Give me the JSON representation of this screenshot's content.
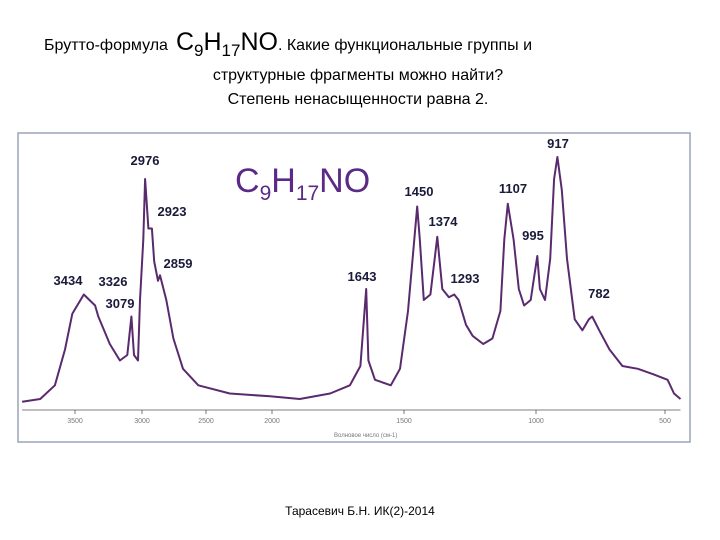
{
  "slide": {
    "line1_prefix": "Брутто-формула",
    "formula": [
      "C",
      "9",
      "H",
      "17",
      "NO"
    ],
    "line1_suffix": ". Какие функциональные группы и",
    "line2": "структурные фрагменты можно найти?",
    "line3": "Степень ненасыщенности равна 2.",
    "footer": "Тарасевич Б.Н. ИК(2)-2014"
  },
  "chart_data": {
    "type": "line",
    "x_label": "Волновое число (см-1)",
    "color": "#5a2a6e",
    "xlim": [
      3895,
      440
    ],
    "ylim": [
      0,
      100
    ],
    "xticks": [
      3500,
      3000,
      2500,
      2000,
      1500,
      1000,
      500
    ],
    "x": [
      3895,
      3760,
      3650,
      3575,
      3520,
      3434,
      3350,
      3326,
      3240,
      3165,
      3110,
      3079,
      3060,
      3030,
      3015,
      2990,
      2976,
      2950,
      2923,
      2905,
      2875,
      2859,
      2810,
      2755,
      2680,
      2560,
      2320,
      2015,
      1895,
      1780,
      1705,
      1665,
      1643,
      1635,
      1610,
      1550,
      1515,
      1485,
      1450,
      1440,
      1425,
      1400,
      1374,
      1355,
      1330,
      1310,
      1293,
      1265,
      1240,
      1200,
      1165,
      1135,
      1120,
      1107,
      1085,
      1065,
      1045,
      1020,
      995,
      985,
      965,
      945,
      930,
      917,
      900,
      880,
      850,
      820,
      795,
      782,
      755,
      715,
      665,
      605,
      545,
      490,
      465,
      440
    ],
    "values": [
      3,
      4,
      9,
      22,
      35,
      42,
      38,
      34,
      24,
      18,
      20,
      34,
      20,
      18,
      40,
      62,
      84,
      66,
      66,
      54,
      47,
      49,
      40,
      26,
      15,
      9,
      6,
      5,
      4,
      6,
      9,
      16,
      44,
      18,
      11,
      9,
      15,
      36,
      74,
      62,
      40,
      42,
      63,
      44,
      41,
      42,
      40,
      31,
      27,
      24,
      26,
      36,
      62,
      75,
      62,
      44,
      38,
      40,
      56,
      44,
      40,
      55,
      84,
      92,
      80,
      55,
      33,
      29,
      33,
      34,
      29,
      22,
      16,
      15,
      13,
      11,
      6,
      4
    ],
    "annotations": [
      {
        "x": 3434,
        "label": "3434"
      },
      {
        "x": 3326,
        "label": "3326"
      },
      {
        "x": 3079,
        "label": "3079"
      },
      {
        "x": 2976,
        "label": "2976"
      },
      {
        "x": 2923,
        "label": "2923"
      },
      {
        "x": 2859,
        "label": "2859"
      },
      {
        "x": 1643,
        "label": "1643"
      },
      {
        "x": 1450,
        "label": "1450"
      },
      {
        "x": 1374,
        "label": "1374"
      },
      {
        "x": 1293,
        "label": "1293"
      },
      {
        "x": 1107,
        "label": "1107"
      },
      {
        "x": 995,
        "label": "995"
      },
      {
        "x": 917,
        "label": "917"
      },
      {
        "x": 782,
        "label": "782"
      }
    ]
  }
}
